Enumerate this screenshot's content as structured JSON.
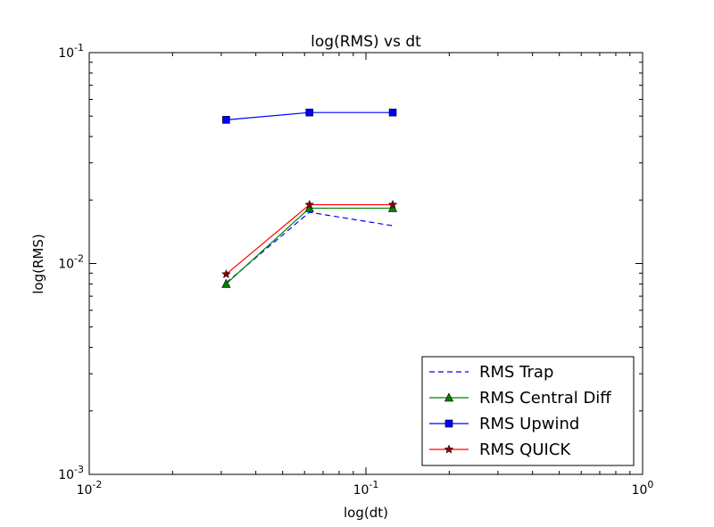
{
  "chart_data": {
    "type": "line",
    "title": "log(RMS) vs dt",
    "xlabel": "log(dt)",
    "ylabel": "log(RMS)",
    "xscale": "log",
    "yscale": "log",
    "xlim": [
      0.01,
      1
    ],
    "ylim": [
      0.001,
      0.1
    ],
    "grid": false,
    "legend_position": "lower-right",
    "x_ticks": [
      {
        "value": 0.01,
        "base": "10",
        "exp": "-2"
      },
      {
        "value": 0.1,
        "base": "10",
        "exp": "-1"
      },
      {
        "value": 1,
        "base": "10",
        "exp": "0"
      }
    ],
    "y_ticks": [
      {
        "value": 0.001,
        "base": "10",
        "exp": "-3"
      },
      {
        "value": 0.01,
        "base": "10",
        "exp": "-2"
      },
      {
        "value": 0.1,
        "base": "10",
        "exp": "-1"
      }
    ],
    "series": [
      {
        "name": "RMS Trap",
        "color": "#0000ff",
        "linestyle": "dashed",
        "marker": "none",
        "x": [
          0.03125,
          0.0625,
          0.125
        ],
        "y": [
          0.0081,
          0.0175,
          0.0151
        ]
      },
      {
        "name": "RMS Central Diff",
        "color": "#008000",
        "linestyle": "solid",
        "marker": "triangle",
        "x": [
          0.03125,
          0.0625,
          0.125
        ],
        "y": [
          0.008,
          0.0183,
          0.0183
        ]
      },
      {
        "name": "RMS Upwind",
        "color": "#0000ff",
        "linestyle": "solid",
        "marker": "square",
        "x": [
          0.03125,
          0.0625,
          0.125
        ],
        "y": [
          0.048,
          0.052,
          0.052
        ]
      },
      {
        "name": "RMS QUICK",
        "color": "#ff0000",
        "linestyle": "solid",
        "marker": "star",
        "marker_color": "#8b0000",
        "x": [
          0.03125,
          0.0625,
          0.125
        ],
        "y": [
          0.0089,
          0.019,
          0.019
        ]
      }
    ]
  }
}
